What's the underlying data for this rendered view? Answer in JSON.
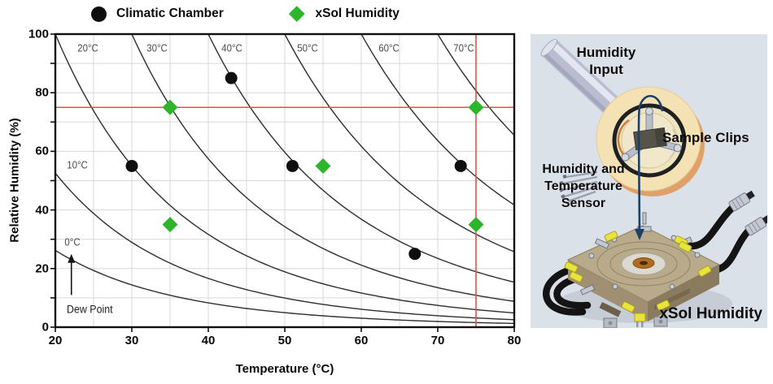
{
  "legend": {
    "items": [
      {
        "label": "Climatic Chamber",
        "marker": "circle",
        "color": "#0e0e0e"
      },
      {
        "label": "xSol Humidity",
        "marker": "diamond",
        "color": "#2db52c"
      }
    ]
  },
  "chart_data": {
    "type": "scatter",
    "title": "",
    "xlabel": "Temperature (°C)",
    "ylabel": "Relative Humidity (%)",
    "xlim": [
      20,
      80
    ],
    "ylim": [
      0,
      100
    ],
    "x_ticks": [
      20,
      30,
      40,
      50,
      60,
      70,
      80
    ],
    "y_ticks": [
      0,
      20,
      40,
      60,
      80,
      100
    ],
    "grid": {
      "show": true,
      "x_minor_step": 5,
      "y_minor_step": 10,
      "color": "#d8d8d8"
    },
    "series": [
      {
        "name": "Climatic Chamber",
        "marker": "circle",
        "color": "#0e0e0e",
        "points": [
          [
            30,
            55
          ],
          [
            43,
            85
          ],
          [
            51,
            55
          ],
          [
            67,
            25
          ],
          [
            73,
            55
          ]
        ]
      },
      {
        "name": "xSol Humidity",
        "marker": "diamond",
        "color": "#2db52c",
        "points": [
          [
            35,
            75
          ],
          [
            35,
            35
          ],
          [
            55,
            55
          ],
          [
            75,
            75
          ],
          [
            75,
            35
          ]
        ]
      }
    ],
    "dew_point_isolines": {
      "dew_points_c": [
        0,
        10,
        20,
        30,
        40,
        50,
        60,
        70
      ],
      "curve_color": "#2e2e2e",
      "labels": [
        {
          "text": "0°C",
          "t": 22.2,
          "rh": 29
        },
        {
          "text": "10°C",
          "t": 22.9,
          "rh": 55.5
        },
        {
          "text": "20°C",
          "t": 24.3,
          "rh": 95.3
        },
        {
          "text": "30°C",
          "t": 33.3,
          "rh": 95.3
        },
        {
          "text": "40°C",
          "t": 43.1,
          "rh": 95.3
        },
        {
          "text": "50°C",
          "t": 53.0,
          "rh": 95.3
        },
        {
          "text": "60°C",
          "t": 63.6,
          "rh": 95.3
        },
        {
          "text": "70°C",
          "t": 73.4,
          "rh": 95.3
        }
      ]
    },
    "crosshair": {
      "t": 75,
      "rh": 75,
      "color": "#e04f4f"
    },
    "annotation": {
      "text": "Dew Point",
      "t": 22.1,
      "arrow_rh_from": 11,
      "arrow_rh_to": 25
    }
  },
  "device_panel": {
    "background": "#dbe1e8",
    "labels": {
      "humidity_input_l1": "Humidity",
      "humidity_input_l2": "Input",
      "sample_clips": "Sample Clips",
      "sensor_l1": "Humidity and",
      "sensor_l2": "Temperature",
      "sensor_l3": "Sensor",
      "device_name": "xSol Humidity"
    }
  }
}
